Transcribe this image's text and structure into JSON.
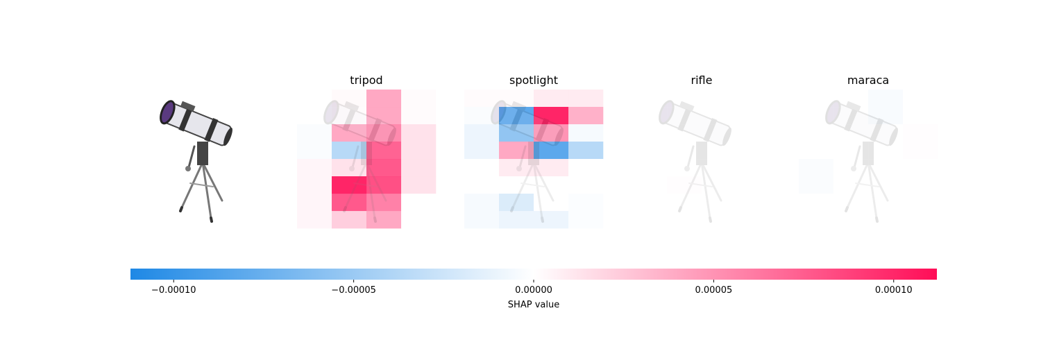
{
  "chart_data": {
    "type": "heatmap",
    "title": "",
    "xlabel": "",
    "ylabel": "",
    "grid": false,
    "original_image": "telescope on tripod",
    "panels": [
      {
        "name": "tripod",
        "values": [
          [
            0.0,
            3e-06,
            4.5e-05,
            2e-06
          ],
          [
            0.0,
            2e-06,
            4.5e-05,
            2e-06
          ],
          [
            -3e-06,
            4.5e-05,
            6e-05,
            1.5e-05
          ],
          [
            -3e-06,
            -4e-05,
            8e-05,
            1.5e-05
          ],
          [
            5e-06,
            1.5e-05,
            8.5e-05,
            1.5e-05
          ],
          [
            5e-06,
            0.00013,
            9e-05,
            1.5e-05
          ],
          [
            5e-06,
            8.5e-05,
            6.5e-05,
            0.0
          ],
          [
            5e-06,
            2.5e-05,
            4.5e-05,
            0.0
          ]
        ]
      },
      {
        "name": "spotlight",
        "values": [
          [
            2e-06,
            2e-06,
            1e-05,
            1e-05
          ],
          [
            -3e-06,
            -9e-05,
            0.00013,
            4e-05
          ],
          [
            -1e-05,
            -6e-05,
            5.5e-05,
            -5e-06
          ],
          [
            -1e-05,
            4.5e-05,
            -9e-05,
            -4e-05
          ],
          [
            0.0,
            1e-05,
            1e-05,
            0.0
          ],
          [
            0.0,
            0.0,
            0.0,
            0.0
          ],
          [
            -5e-06,
            -2e-05,
            0.0,
            -2e-06
          ],
          [
            -5e-06,
            -1e-05,
            -1e-05,
            -2e-06
          ]
        ]
      },
      {
        "name": "rifle",
        "values": [
          [
            0,
            0,
            0,
            0
          ],
          [
            0,
            0,
            0,
            0
          ],
          [
            0,
            0,
            0,
            0
          ],
          [
            0,
            0,
            0,
            0
          ],
          [
            0,
            0,
            0,
            0
          ],
          [
            0,
            1e-06,
            0,
            0
          ],
          [
            0,
            0,
            0,
            0
          ],
          [
            0,
            0,
            0,
            0
          ]
        ]
      },
      {
        "name": "maraca",
        "values": [
          [
            0,
            0,
            -4e-06,
            0
          ],
          [
            0,
            0,
            -4e-06,
            0
          ],
          [
            0,
            0,
            0,
            1e-06
          ],
          [
            0,
            0,
            0,
            1e-06
          ],
          [
            -3e-06,
            0,
            0,
            0
          ],
          [
            -3e-06,
            0,
            0,
            0
          ],
          [
            0,
            0,
            0,
            0
          ],
          [
            0,
            0,
            0,
            0
          ]
        ]
      }
    ],
    "colorbar": {
      "label": "SHAP value",
      "min": -0.000112,
      "max": 0.000112,
      "ticks": [
        -0.0001,
        -5e-05,
        0,
        5e-05,
        0.0001
      ],
      "tick_labels": [
        "−0.00010",
        "−0.00005",
        "0.00000",
        "0.00005",
        "0.00010"
      ],
      "negative_color": "#1e88e5",
      "positive_color": "#ff0d57"
    }
  }
}
